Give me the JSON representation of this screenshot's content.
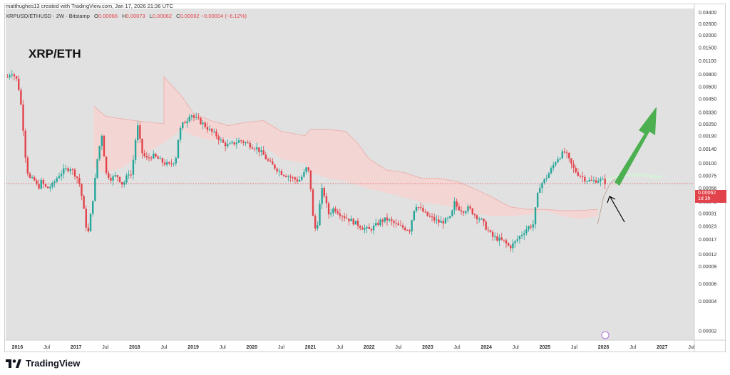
{
  "header": {
    "caption": "matthughes13 created with TradingView.com, Jan 17, 2026 21:36 UTC",
    "symbol": "XRPUSD/ETHUSD · 2W · Bitstamp",
    "open_label": "O",
    "open": "0.00066",
    "high_label": "H",
    "high": "0.00073",
    "low_label": "L",
    "low": "0.00062",
    "close_label": "C",
    "close": "0.00062",
    "change": "−0.00004 (−6.12%)"
  },
  "pair_title": "XRP/ETH",
  "price_tag": {
    "value": "0.00062",
    "countdown": "1d 3h"
  },
  "brand": {
    "name": "TradingView"
  },
  "chart_data": {
    "type": "candlestick",
    "y_scale": "log",
    "ylim": [
      1.6e-05,
      0.037
    ],
    "y_ticks": [
      0.034,
      0.026,
      0.02,
      0.015,
      0.011,
      0.008,
      0.006,
      0.0045,
      0.0033,
      0.0025,
      0.0019,
      0.0014,
      0.001,
      0.00075,
      0.00056,
      0.00041,
      0.00031,
      0.00023,
      0.00017,
      0.00012,
      9e-05,
      6e-05,
      4e-05,
      2e-05
    ],
    "y_tick_labels": [
      "0.03400",
      "0.02600",
      "0.02000",
      "0.01500",
      "0.01100",
      "0.00800",
      "0.00600",
      "0.00450",
      "0.00330",
      "0.00250",
      "0.00190",
      "0.00140",
      "0.00100",
      "0.00075",
      "0.00056",
      "0.00041",
      "0.00031",
      "0.00023",
      "0.00017",
      "0.00012",
      "0.00009",
      "0.00006",
      "0.00004",
      "0.00002"
    ],
    "x_range": [
      2015.8,
      2027.55
    ],
    "x_ticks": [
      2016,
      2016.5,
      2017,
      2017.5,
      2018,
      2018.5,
      2019,
      2019.5,
      2020,
      2020.5,
      2021,
      2021.5,
      2022,
      2022.5,
      2023,
      2023.5,
      2024,
      2024.5,
      2025,
      2025.5,
      2026,
      2026.5,
      2027,
      2027.5
    ],
    "x_tick_labels": [
      "2016",
      "Jul",
      "2017",
      "Jul",
      "2018",
      "Jul",
      "2019",
      "Jul",
      "2020",
      "Jul",
      "2021",
      "Jul",
      "2022",
      "Jul",
      "2023",
      "Jul",
      "2024",
      "Jul",
      "2025",
      "Jul",
      "2026",
      "Jul",
      "2027",
      "Jul"
    ],
    "current_price": 0.00062,
    "price_path": [
      [
        2015.83,
        0.0075
      ],
      [
        2015.9,
        0.0085
      ],
      [
        2016.0,
        0.0068
      ],
      [
        2016.05,
        0.0045
      ],
      [
        2016.1,
        0.0022
      ],
      [
        2016.15,
        0.00095
      ],
      [
        2016.2,
        0.0007
      ],
      [
        2016.3,
        0.00066
      ],
      [
        2016.35,
        0.00055
      ],
      [
        2016.4,
        0.00065
      ],
      [
        2016.5,
        0.00055
      ],
      [
        2016.6,
        0.0006
      ],
      [
        2016.7,
        0.00075
      ],
      [
        2016.8,
        0.00085
      ],
      [
        2016.9,
        0.0009
      ],
      [
        2017.0,
        0.00075
      ],
      [
        2017.05,
        0.00065
      ],
      [
        2017.1,
        0.00045
      ],
      [
        2017.15,
        0.00028
      ],
      [
        2017.2,
        0.00018
      ],
      [
        2017.3,
        0.0005
      ],
      [
        2017.37,
        0.0012
      ],
      [
        2017.45,
        0.0021
      ],
      [
        2017.5,
        0.0008
      ],
      [
        2017.6,
        0.0007
      ],
      [
        2017.7,
        0.00075
      ],
      [
        2017.8,
        0.0006
      ],
      [
        2017.9,
        0.0008
      ],
      [
        2017.95,
        0.00075
      ],
      [
        2018.0,
        0.0015
      ],
      [
        2018.05,
        0.0024
      ],
      [
        2018.12,
        0.0013
      ],
      [
        2018.2,
        0.0011
      ],
      [
        2018.3,
        0.0012
      ],
      [
        2018.4,
        0.0011
      ],
      [
        2018.5,
        0.001
      ],
      [
        2018.6,
        0.00095
      ],
      [
        2018.7,
        0.0011
      ],
      [
        2018.75,
        0.0019
      ],
      [
        2018.8,
        0.0024
      ],
      [
        2018.9,
        0.0028
      ],
      [
        2018.95,
        0.0033
      ],
      [
        2019.0,
        0.0029
      ],
      [
        2019.1,
        0.0027
      ],
      [
        2019.2,
        0.0024
      ],
      [
        2019.3,
        0.0021
      ],
      [
        2019.4,
        0.0019
      ],
      [
        2019.5,
        0.0016
      ],
      [
        2019.6,
        0.0015
      ],
      [
        2019.7,
        0.0016
      ],
      [
        2019.8,
        0.0017
      ],
      [
        2019.9,
        0.0016
      ],
      [
        2020.0,
        0.0015
      ],
      [
        2020.1,
        0.0014
      ],
      [
        2020.2,
        0.0012
      ],
      [
        2020.3,
        0.001
      ],
      [
        2020.4,
        0.0009
      ],
      [
        2020.5,
        0.0008
      ],
      [
        2020.6,
        0.00075
      ],
      [
        2020.7,
        0.0007
      ],
      [
        2020.8,
        0.00066
      ],
      [
        2020.9,
        0.0008
      ],
      [
        2020.95,
        0.00095
      ],
      [
        2021.0,
        0.0006
      ],
      [
        2021.05,
        0.00025
      ],
      [
        2021.1,
        0.0002
      ],
      [
        2021.15,
        0.00035
      ],
      [
        2021.2,
        0.00055
      ],
      [
        2021.25,
        0.00045
      ],
      [
        2021.3,
        0.0003
      ],
      [
        2021.4,
        0.00035
      ],
      [
        2021.5,
        0.00031
      ],
      [
        2021.6,
        0.00028
      ],
      [
        2021.7,
        0.00026
      ],
      [
        2021.8,
        0.00024
      ],
      [
        2021.9,
        0.00022
      ],
      [
        2022.0,
        0.00021
      ],
      [
        2022.1,
        0.00023
      ],
      [
        2022.2,
        0.00026
      ],
      [
        2022.3,
        0.00027
      ],
      [
        2022.4,
        0.00025
      ],
      [
        2022.5,
        0.00023
      ],
      [
        2022.6,
        0.00022
      ],
      [
        2022.7,
        0.00021
      ],
      [
        2022.75,
        0.00032
      ],
      [
        2022.8,
        0.00038
      ],
      [
        2022.9,
        0.00033
      ],
      [
        2023.0,
        0.00029
      ],
      [
        2023.1,
        0.00027
      ],
      [
        2023.2,
        0.00025
      ],
      [
        2023.3,
        0.00026
      ],
      [
        2023.4,
        0.00028
      ],
      [
        2023.45,
        0.0004
      ],
      [
        2023.5,
        0.00036
      ],
      [
        2023.6,
        0.00033
      ],
      [
        2023.7,
        0.00035
      ],
      [
        2023.8,
        0.0003
      ],
      [
        2023.9,
        0.00027
      ],
      [
        2024.0,
        0.00022
      ],
      [
        2024.1,
        0.00018
      ],
      [
        2024.2,
        0.00017
      ],
      [
        2024.3,
        0.00016
      ],
      [
        2024.4,
        0.00014
      ],
      [
        2024.5,
        0.00016
      ],
      [
        2024.6,
        0.00019
      ],
      [
        2024.7,
        0.00022
      ],
      [
        2024.8,
        0.00024
      ],
      [
        2024.85,
        0.00038
      ],
      [
        2024.9,
        0.00058
      ],
      [
        2025.0,
        0.00068
      ],
      [
        2025.1,
        0.00085
      ],
      [
        2025.2,
        0.0011
      ],
      [
        2025.3,
        0.00125
      ],
      [
        2025.35,
        0.0013
      ],
      [
        2025.4,
        0.0011
      ],
      [
        2025.5,
        0.00085
      ],
      [
        2025.6,
        0.00075
      ],
      [
        2025.7,
        0.00068
      ],
      [
        2025.8,
        0.00065
      ],
      [
        2025.9,
        0.00068
      ],
      [
        2026.0,
        0.00066
      ],
      [
        2026.05,
        0.00062
      ]
    ],
    "cloud_top": [
      [
        2017.3,
        0.0038
      ],
      [
        2017.5,
        0.003
      ],
      [
        2017.8,
        0.0028
      ],
      [
        2018.0,
        0.0027
      ],
      [
        2018.5,
        0.0025
      ],
      [
        2018.5,
        0.0075
      ],
      [
        2018.8,
        0.0048
      ],
      [
        2019.0,
        0.0032
      ],
      [
        2019.3,
        0.0027
      ],
      [
        2019.6,
        0.0024
      ],
      [
        2019.9,
        0.0026
      ],
      [
        2020.2,
        0.0027
      ],
      [
        2020.5,
        0.0021
      ],
      [
        2020.9,
        0.0019
      ],
      [
        2021.0,
        0.0022
      ],
      [
        2021.3,
        0.0022
      ],
      [
        2021.6,
        0.0021
      ],
      [
        2021.8,
        0.0016
      ],
      [
        2022.0,
        0.0011
      ],
      [
        2022.3,
        0.00085
      ],
      [
        2022.6,
        0.0008
      ],
      [
        2022.9,
        0.0007
      ],
      [
        2023.2,
        0.0007
      ],
      [
        2023.5,
        0.00065
      ],
      [
        2023.8,
        0.00055
      ],
      [
        2024.1,
        0.00045
      ],
      [
        2024.4,
        0.00036
      ],
      [
        2024.7,
        0.00034
      ],
      [
        2025.0,
        0.00034
      ],
      [
        2025.3,
        0.00033
      ],
      [
        2025.6,
        0.00033
      ],
      [
        2025.9,
        0.00034
      ]
    ],
    "cloud_bottom": [
      [
        2017.3,
        0.0009
      ],
      [
        2017.5,
        0.0008
      ],
      [
        2017.8,
        0.0009
      ],
      [
        2018.0,
        0.0011
      ],
      [
        2018.5,
        0.0016
      ],
      [
        2018.8,
        0.0022
      ],
      [
        2019.0,
        0.0019
      ],
      [
        2019.3,
        0.0017
      ],
      [
        2019.6,
        0.0018
      ],
      [
        2019.9,
        0.0017
      ],
      [
        2020.2,
        0.0015
      ],
      [
        2020.5,
        0.0011
      ],
      [
        2020.9,
        0.001
      ],
      [
        2021.0,
        0.0008
      ],
      [
        2021.3,
        0.0007
      ],
      [
        2021.6,
        0.00065
      ],
      [
        2021.8,
        0.0006
      ],
      [
        2022.0,
        0.00055
      ],
      [
        2022.3,
        0.0005
      ],
      [
        2022.6,
        0.00045
      ],
      [
        2022.9,
        0.0004
      ],
      [
        2023.2,
        0.00038
      ],
      [
        2023.5,
        0.00035
      ],
      [
        2023.8,
        0.00031
      ],
      [
        2024.1,
        0.00029
      ],
      [
        2024.4,
        0.00029
      ],
      [
        2024.7,
        0.0003
      ],
      [
        2025.0,
        0.00033
      ],
      [
        2025.3,
        0.00029
      ],
      [
        2025.6,
        0.00027
      ],
      [
        2025.9,
        0.00029
      ]
    ],
    "future_cloud": [
      [
        2026.0,
        0.00068
      ],
      [
        2026.3,
        0.00078
      ],
      [
        2026.6,
        0.00079
      ],
      [
        2026.9,
        0.00075
      ],
      [
        2027.0,
        0.00075
      ]
    ],
    "leading_line": [
      [
        2025.9,
        0.00024
      ],
      [
        2026.0,
        0.00045
      ],
      [
        2026.1,
        0.0006
      ],
      [
        2026.2,
        0.0007
      ]
    ],
    "annotations": [
      {
        "type": "arrow",
        "color": "#4caf50",
        "direction": "up"
      },
      {
        "type": "arrow",
        "color": "#000000",
        "direction": "up-left"
      }
    ],
    "colors": {
      "up": "#26a69a",
      "down": "#e2434b",
      "cloud_bear": "#f6d3d1",
      "cloud_bull": "#d8efd9",
      "green_arrow": "#4caf50"
    }
  }
}
